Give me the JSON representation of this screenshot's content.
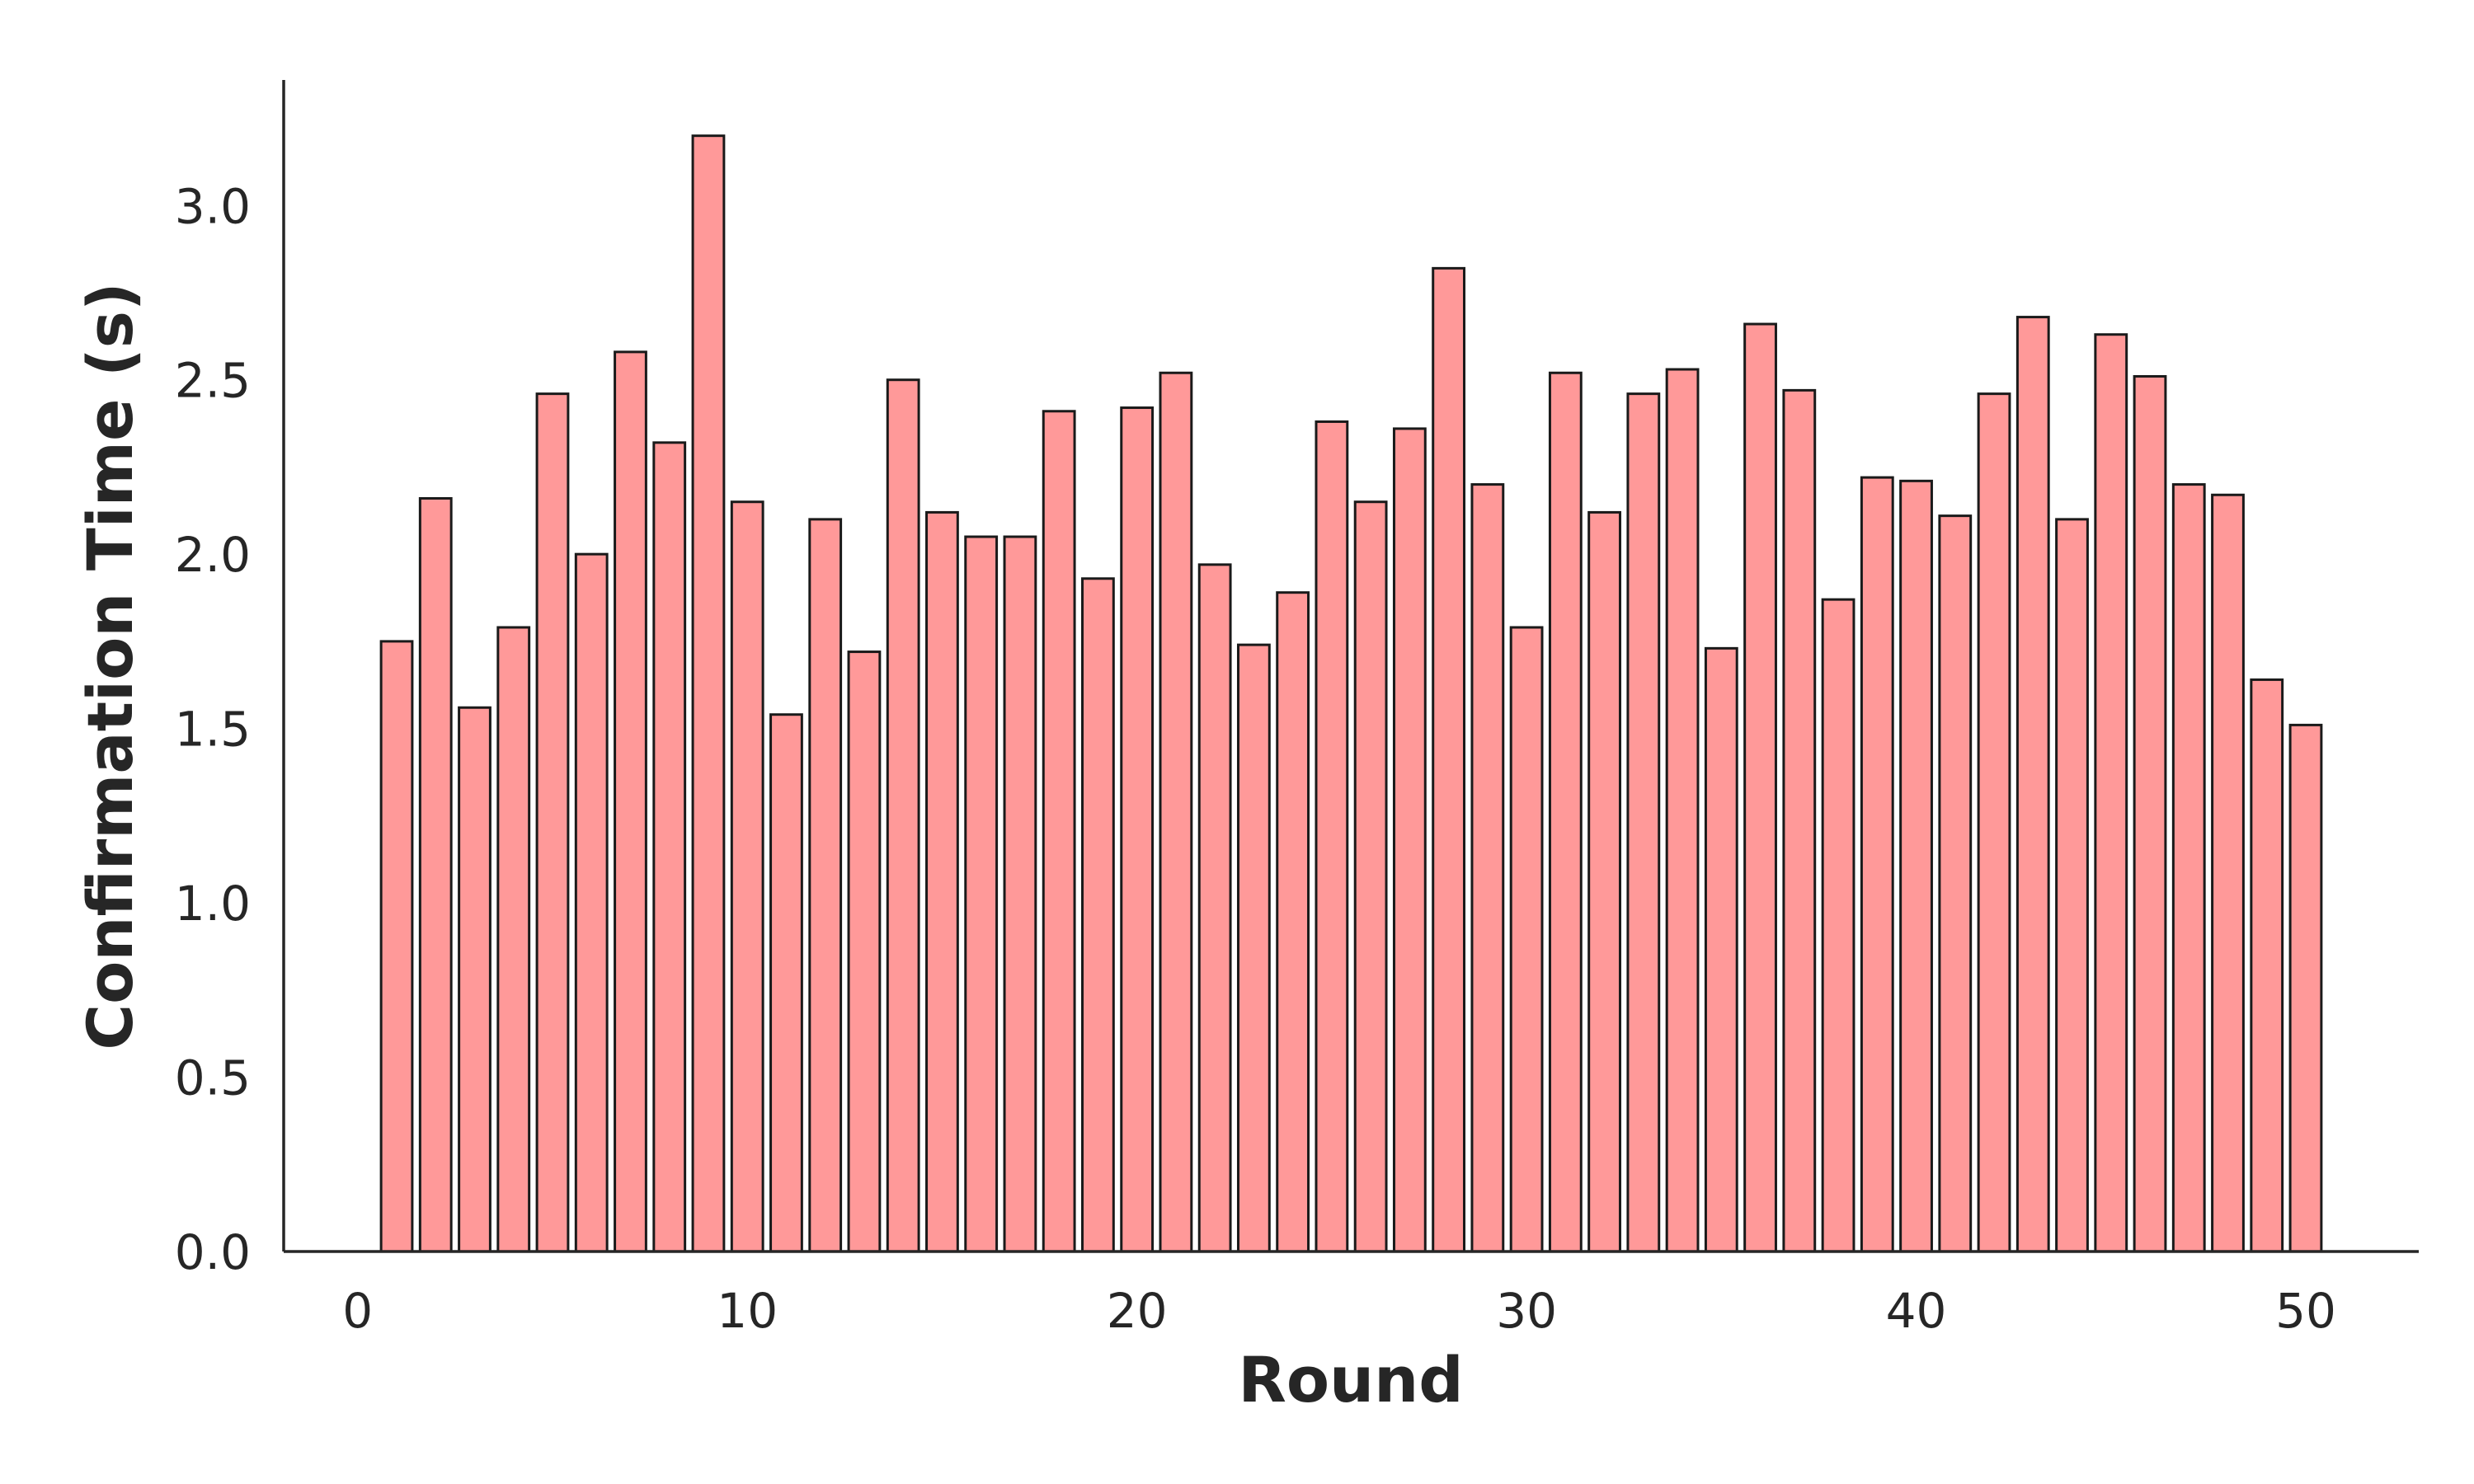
{
  "chart_data": {
    "type": "bar",
    "x_label": "Round",
    "y_label": "Confirmation Time (s)",
    "x": [
      1,
      2,
      3,
      4,
      5,
      6,
      7,
      8,
      9,
      10,
      11,
      12,
      13,
      14,
      15,
      16,
      17,
      18,
      19,
      20,
      21,
      22,
      23,
      24,
      25,
      26,
      27,
      28,
      29,
      30,
      31,
      32,
      33,
      34,
      35,
      36,
      37,
      38,
      39,
      40,
      41,
      42,
      43,
      44,
      45,
      46,
      47,
      48,
      49,
      50
    ],
    "values": [
      1.75,
      2.16,
      1.56,
      1.79,
      2.46,
      2.0,
      2.58,
      2.32,
      3.2,
      2.15,
      1.54,
      2.1,
      1.72,
      2.5,
      2.12,
      2.05,
      2.05,
      2.41,
      1.93,
      2.42,
      2.52,
      1.97,
      1.74,
      1.89,
      2.38,
      2.15,
      2.36,
      2.82,
      2.2,
      1.79,
      2.52,
      2.12,
      2.46,
      2.53,
      1.73,
      2.66,
      2.47,
      1.87,
      2.22,
      2.21,
      2.11,
      2.46,
      2.68,
      2.1,
      2.63,
      2.51,
      2.2,
      2.17,
      1.64,
      1.51
    ],
    "color": "#ff9999",
    "edgecolor": "#1a1a1a",
    "bar_width": 0.8,
    "xlim": [
      -1.9,
      52.9
    ],
    "xticks": [
      0,
      10,
      20,
      30,
      40,
      50
    ],
    "ylim": [
      0,
      3.36
    ],
    "yticks": [
      {
        "value": 0,
        "label": "0.0"
      },
      0.5,
      {
        "value": 1,
        "label": "1.0"
      },
      1.5,
      {
        "value": 2,
        "label": "2.0"
      },
      2.5,
      {
        "value": 3,
        "label": "3.0"
      }
    ],
    "grid": false
  }
}
